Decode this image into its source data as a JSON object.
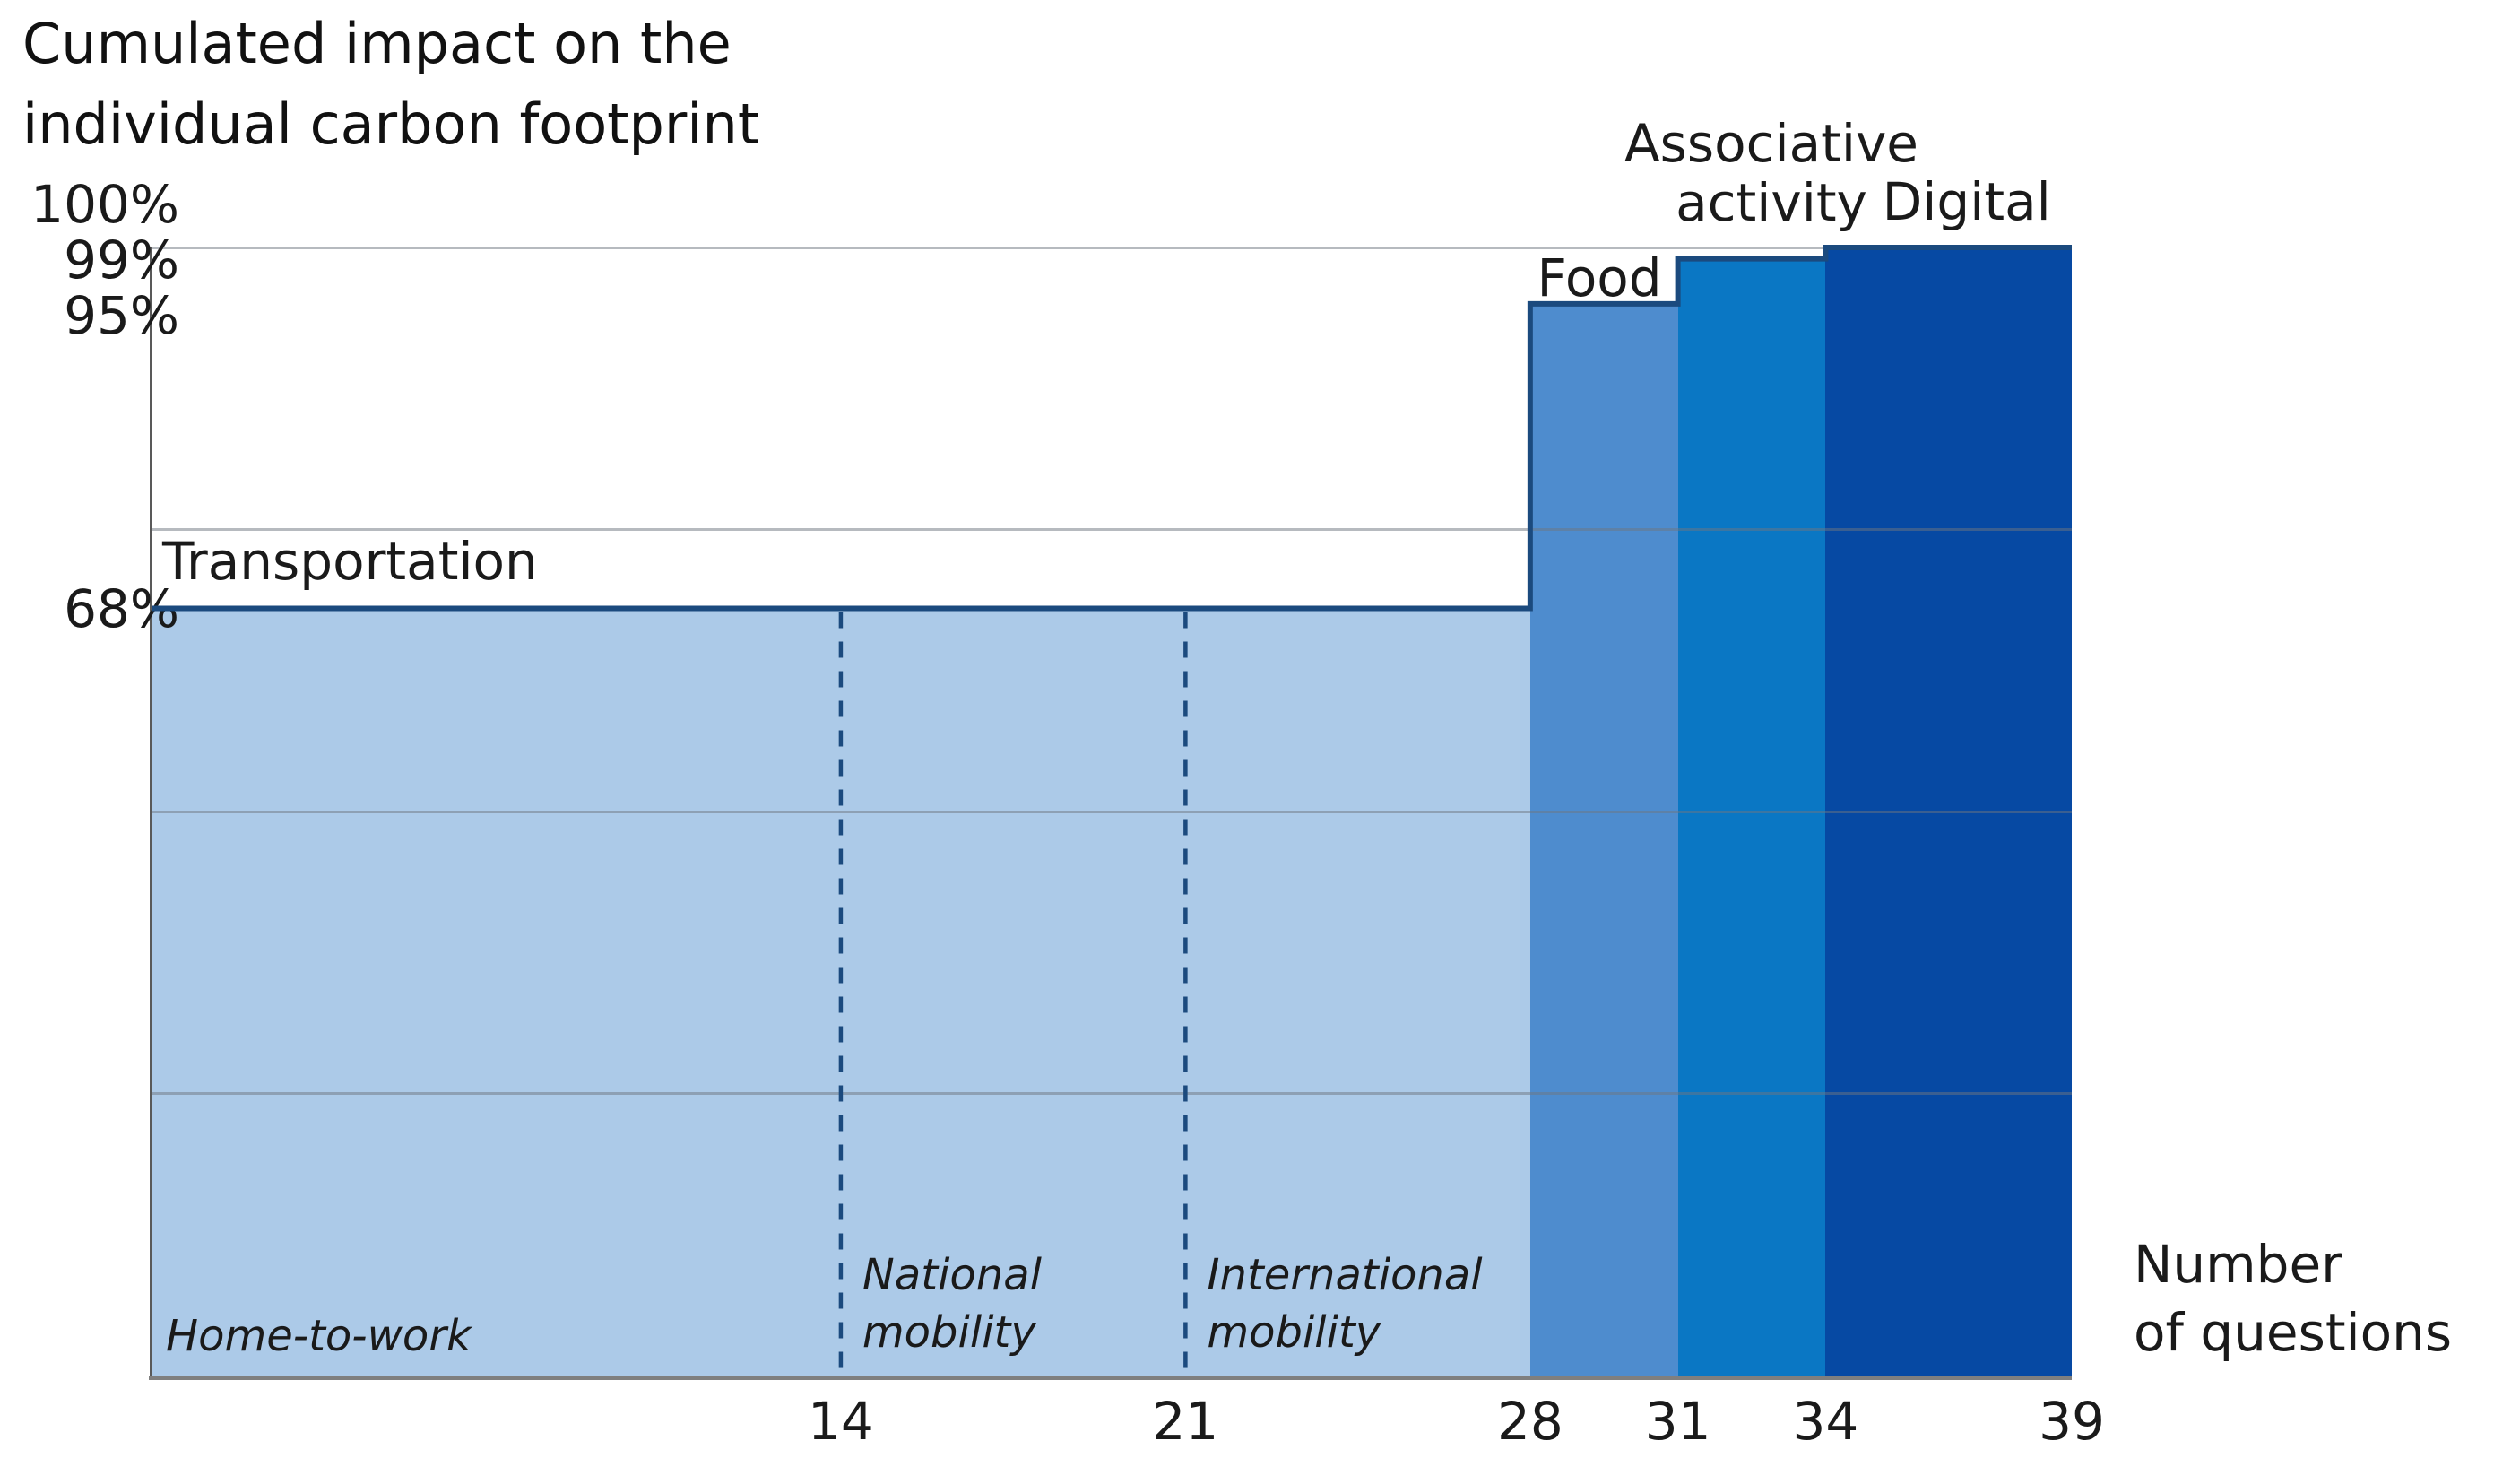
{
  "title": {
    "lines": [
      "Cumulated impact on the",
      "individual carbon footprint"
    ]
  },
  "x_axis_title": {
    "lines": [
      "Number",
      "of questions"
    ]
  },
  "chart_data": {
    "type": "area",
    "subtype": "cumulative-step-pareto",
    "title": "Cumulated impact on the individual carbon footprint",
    "xlabel": "Number of questions",
    "ylabel": "Cumulated impact on the individual carbon footprint",
    "xlim": [
      0,
      39
    ],
    "ylim_pct": [
      0,
      100
    ],
    "grid": "on",
    "gridlines_pct": [
      25,
      50,
      75,
      100
    ],
    "x_ticks": [
      {
        "value": 14,
        "label": "14"
      },
      {
        "value": 21,
        "label": "21"
      },
      {
        "value": 28,
        "label": "28"
      },
      {
        "value": 31,
        "label": "31"
      },
      {
        "value": 34,
        "label": "34"
      },
      {
        "value": 39,
        "label": "39"
      }
    ],
    "y_ticks": [
      {
        "value": 100,
        "label": "100%"
      },
      {
        "value": 99,
        "label": "99%"
      },
      {
        "value": 95,
        "label": "95%"
      },
      {
        "value": 68,
        "label": "68%"
      }
    ],
    "segments": [
      {
        "label": "Transportation",
        "x_start": 0,
        "x_end": 28,
        "questions": 28,
        "cumulative_impact_pct": 68,
        "color": "#accae8",
        "sub_segments": [
          {
            "label": "Home-to-work",
            "x_start": 0,
            "x_end": 14,
            "questions": 14
          },
          {
            "label": "National mobility",
            "x_start": 14,
            "x_end": 21,
            "questions": 7
          },
          {
            "label": "International mobility",
            "x_start": 21,
            "x_end": 28,
            "questions": 7
          }
        ]
      },
      {
        "label": "Food",
        "x_start": 28,
        "x_end": 31,
        "questions": 3,
        "cumulative_impact_pct": 95,
        "color": "#4e8cce"
      },
      {
        "label": "Associative activity",
        "x_start": 31,
        "x_end": 34,
        "questions": 3,
        "cumulative_impact_pct": 99,
        "color": "#0a77c4"
      },
      {
        "label": "Digital",
        "x_start": 34,
        "x_end": 39,
        "questions": 5,
        "cumulative_impact_pct": 100,
        "color": "#0649a3"
      }
    ],
    "colors": {
      "step_outline": "#1b4a7e",
      "divider_dash": "#1b4a7e",
      "y_axis": "#595959",
      "baseline": "#7f7f7f",
      "text": "#1a1a1a"
    }
  }
}
